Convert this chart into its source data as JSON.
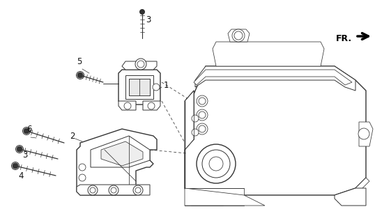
{
  "background_color": "#ffffff",
  "line_color": "#333333",
  "label_color": "#111111",
  "fr_label": "FR.",
  "figsize": [
    5.38,
    3.2
  ],
  "dpi": 100
}
